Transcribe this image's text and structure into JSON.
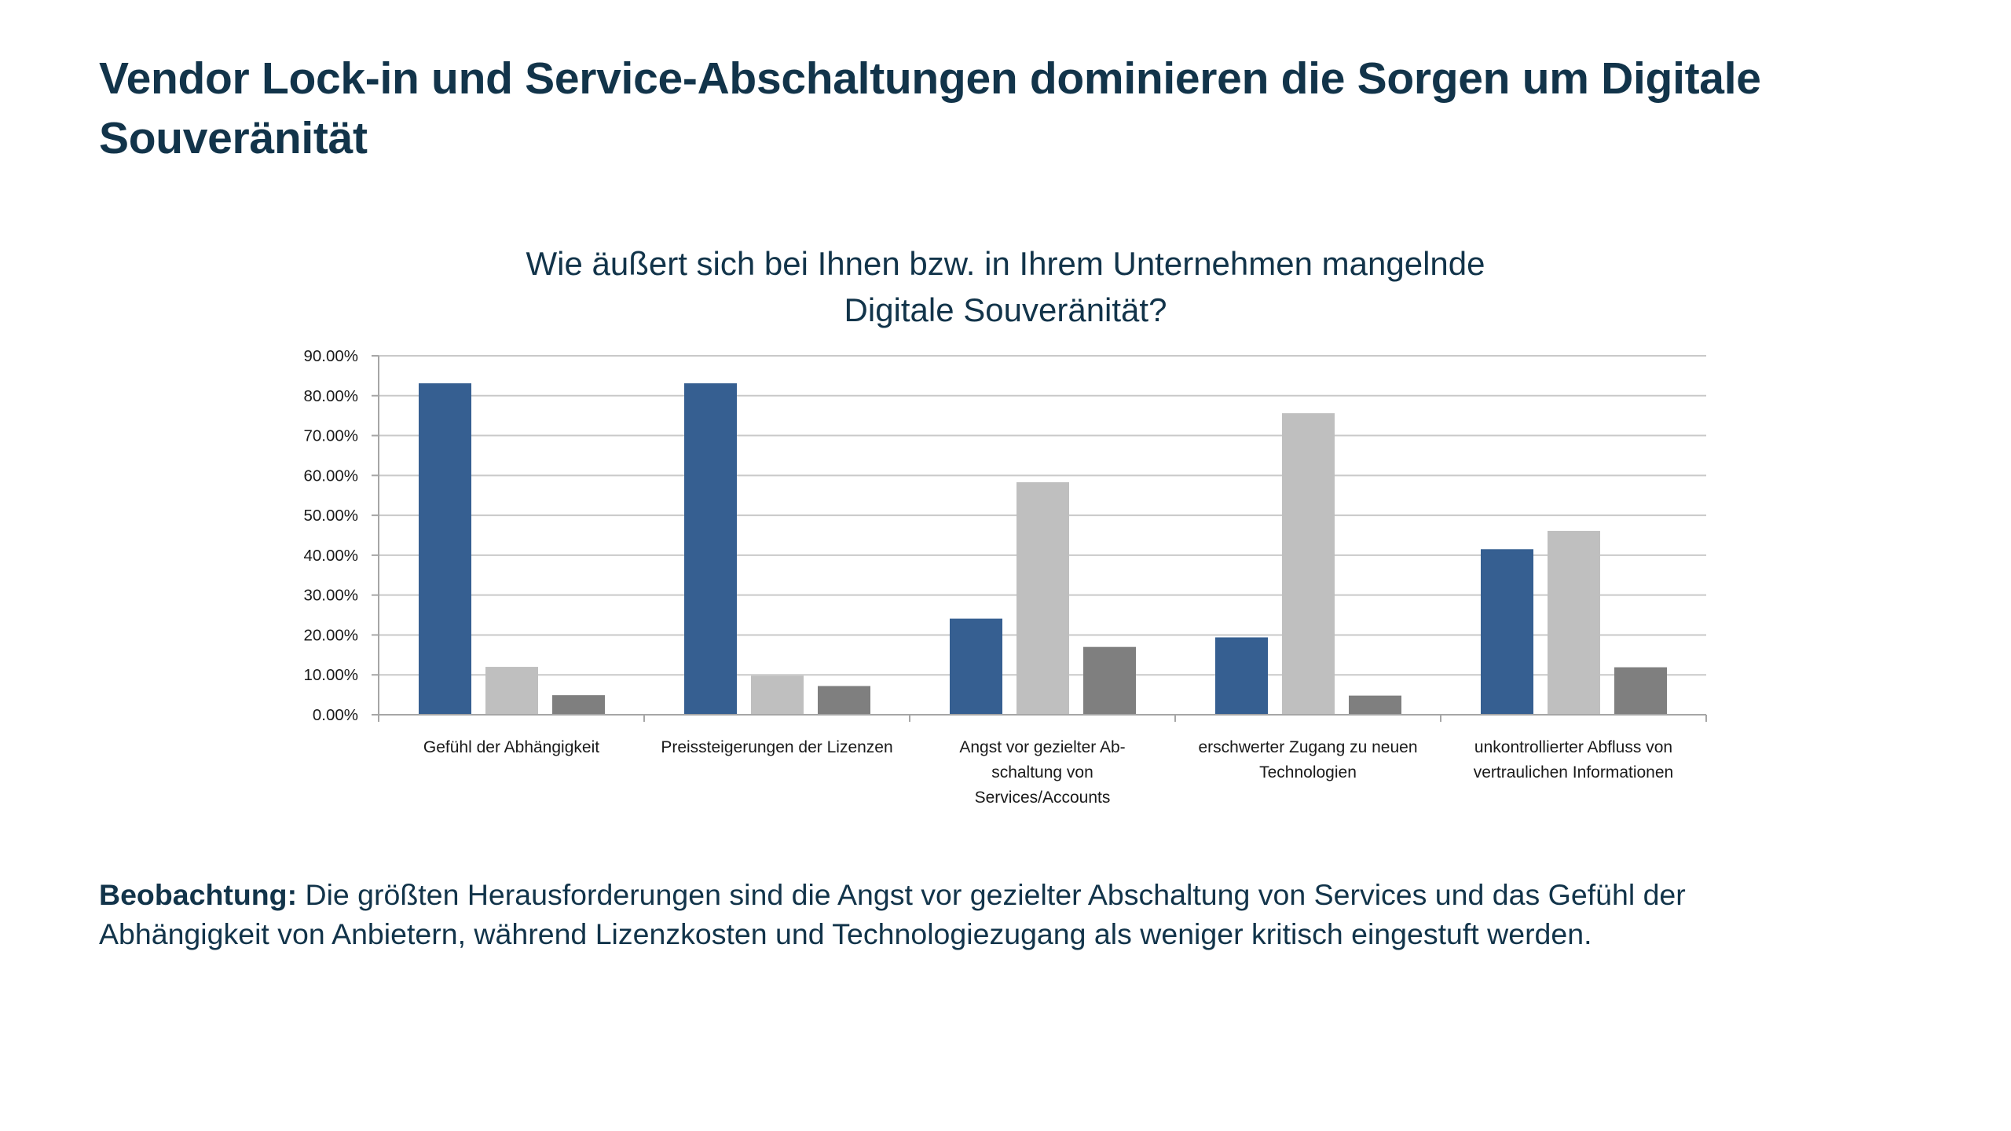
{
  "header": {
    "title": "Vendor Lock-in und Service-Abschaltungen dominieren die Sorgen um Digitale Souveränität"
  },
  "chart_data": {
    "type": "bar",
    "title": "Wie äußert sich bei Ihnen bzw. in Ihrem Unternehmen mangelnde Digitale Souveränität?",
    "title_lines": [
      "Wie äußert sich bei Ihnen bzw. in Ihrem Unternehmen mangelnde",
      "Digitale Souveränität?"
    ],
    "xlabel": "",
    "ylabel": "",
    "ylim": [
      0,
      90
    ],
    "yticks": [
      0,
      10,
      20,
      30,
      40,
      50,
      60,
      70,
      80,
      90
    ],
    "ytick_labels": [
      "0.00%",
      "10.00%",
      "20.00%",
      "30.00%",
      "40.00%",
      "50.00%",
      "60.00%",
      "70.00%",
      "80.00%",
      "90.00%"
    ],
    "grid": true,
    "legend": "none",
    "categories": [
      "Gefühl der Abhängigkeit",
      "Preissteigerungen der Lizenzen",
      "Angst vor gezielter Abschaltung von Services/Accounts",
      "erschwerter Zugang zu neuen Technologien",
      "unkontrollierter Abfluss von vertraulichen Informationen"
    ],
    "category_label_lines": [
      [
        "Gefühl der Abhängigkeit"
      ],
      [
        "Preissteigerungen der Lizenzen"
      ],
      [
        "Angst vor gezielter Ab-",
        "schaltung von",
        "Services/Accounts"
      ],
      [
        "erschwerter Zugang zu neuen",
        "Technologien"
      ],
      [
        "unkontrollierter Abfluss von",
        "vertraulichen Informationen"
      ]
    ],
    "series": [
      {
        "name": "Series 1",
        "color": "#365f91",
        "values": [
          83.1,
          83.1,
          24.1,
          19.4,
          41.5
        ]
      },
      {
        "name": "Series 2",
        "color": "#bfbfbf",
        "values": [
          12.0,
          9.8,
          58.3,
          75.6,
          46.1
        ]
      },
      {
        "name": "Series 3",
        "color": "#7f7f7f",
        "values": [
          4.9,
          7.2,
          17.0,
          4.8,
          11.9
        ]
      }
    ],
    "colors": {
      "gridline": "#c9c9c9",
      "axis": "#a6a6a6"
    }
  },
  "observation": {
    "label": "Beobachtung:",
    "text": " Die größten Herausforderungen sind die Angst vor gezielter Abschaltung von Services und das Gefühl der Abhängigkeit von Anbietern, während Lizenzkosten und Technologiezugang als weniger kritisch eingestuft werden."
  }
}
